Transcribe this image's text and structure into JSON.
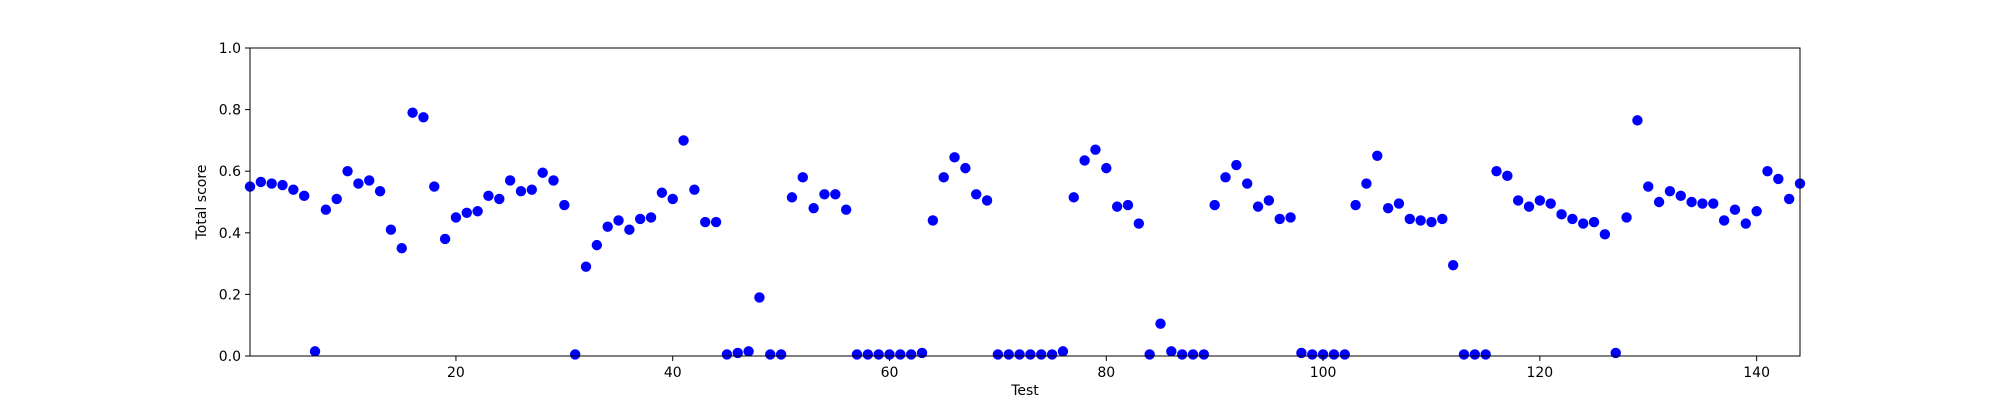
{
  "chart_data": {
    "type": "scatter",
    "xlabel": "Test",
    "ylabel": "Total score",
    "xlim": [
      1,
      144
    ],
    "ylim": [
      0.0,
      1.0
    ],
    "xticks": [
      20,
      40,
      60,
      80,
      100,
      120,
      140
    ],
    "yticks": [
      0.0,
      0.2,
      0.4,
      0.6,
      0.8,
      1.0
    ],
    "ytick_labels": [
      "0.0",
      "0.2",
      "0.4",
      "0.6",
      "0.8",
      "1.0"
    ],
    "grid": false,
    "marker_color": "#0000ff",
    "series": [
      {
        "x": [
          1,
          2,
          3,
          4,
          5,
          6,
          7,
          8,
          9,
          10,
          11,
          12,
          13,
          14,
          15,
          16,
          17,
          18,
          19,
          20,
          21,
          22,
          23,
          24,
          25,
          26,
          27,
          28,
          29,
          30,
          31,
          32,
          33,
          34,
          35,
          36,
          37,
          38,
          39,
          40,
          41,
          42,
          43,
          44,
          45,
          46,
          47,
          48,
          49,
          50,
          51,
          52,
          53,
          54,
          55,
          56,
          57,
          58,
          59,
          60,
          61,
          62,
          63,
          64,
          65,
          66,
          67,
          68,
          69,
          70,
          71,
          72,
          73,
          74,
          75,
          76,
          77,
          78,
          79,
          80,
          81,
          82,
          83,
          84,
          85,
          86,
          87,
          88,
          89,
          90,
          91,
          92,
          93,
          94,
          95,
          96,
          97,
          98,
          99,
          100,
          101,
          102,
          103,
          104,
          105,
          106,
          107,
          108,
          109,
          110,
          111,
          112,
          113,
          114,
          115,
          116,
          117,
          118,
          119,
          120,
          121,
          122,
          123,
          124,
          125,
          126,
          127,
          128,
          129,
          130,
          131,
          132,
          133,
          134,
          135,
          136,
          137,
          138,
          139,
          140,
          141,
          142,
          143,
          144
        ],
        "y": [
          0.55,
          0.565,
          0.56,
          0.555,
          0.54,
          0.52,
          0.015,
          0.475,
          0.51,
          0.6,
          0.56,
          0.57,
          0.535,
          0.41,
          0.35,
          0.79,
          0.775,
          0.55,
          0.38,
          0.45,
          0.465,
          0.47,
          0.52,
          0.51,
          0.57,
          0.535,
          0.54,
          0.595,
          0.57,
          0.49,
          0.005,
          0.29,
          0.36,
          0.42,
          0.44,
          0.41,
          0.445,
          0.45,
          0.53,
          0.51,
          0.7,
          0.54,
          0.435,
          0.435,
          0.005,
          0.01,
          0.015,
          0.19,
          0.005,
          0.005,
          0.515,
          0.58,
          0.48,
          0.525,
          0.525,
          0.475,
          0.005,
          0.005,
          0.005,
          0.005,
          0.005,
          0.005,
          0.01,
          0.44,
          0.58,
          0.645,
          0.61,
          0.525,
          0.505,
          0.005,
          0.005,
          0.005,
          0.005,
          0.005,
          0.005,
          0.015,
          0.515,
          0.635,
          0.67,
          0.61,
          0.485,
          0.49,
          0.43,
          0.005,
          0.105,
          0.015,
          0.005,
          0.005,
          0.005,
          0.49,
          0.58,
          0.62,
          0.56,
          0.485,
          0.505,
          0.445,
          0.45,
          0.01,
          0.005,
          0.005,
          0.005,
          0.005,
          0.49,
          0.56,
          0.65,
          0.48,
          0.495,
          0.445,
          0.44,
          0.435,
          0.445,
          0.295,
          0.005,
          0.005,
          0.005,
          0.6,
          0.585,
          0.505,
          0.485,
          0.505,
          0.495,
          0.46,
          0.445,
          0.43,
          0.435,
          0.395,
          0.01,
          0.45,
          0.765,
          0.55,
          0.5,
          0.535,
          0.52,
          0.5,
          0.495,
          0.495,
          0.44,
          0.475,
          0.43,
          0.47,
          0.6,
          0.575,
          0.51,
          0.56
        ]
      }
    ]
  }
}
